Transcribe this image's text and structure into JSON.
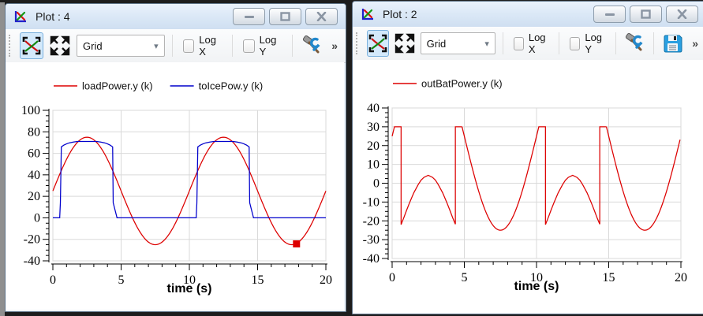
{
  "desktop": {
    "background": "#1d1d1d",
    "left_strip_color": "#8f8f8f"
  },
  "windows": [
    {
      "title": "Plot : 4",
      "titlebar_buttons": {
        "minimize": "minimize",
        "maximize": "maximize",
        "close": "close"
      },
      "toolbar": {
        "fit_button": "auto-scale",
        "pan_button": "pan",
        "grid_value": "Grid",
        "logx_label": "Log X",
        "logx_checked": false,
        "logy_label": "Log Y",
        "logy_checked": false,
        "setup_button": "setup",
        "overflow_label": "»"
      },
      "chart_index": 0
    },
    {
      "title": "Plot : 2",
      "titlebar_buttons": {
        "minimize": "minimize",
        "maximize": "maximize",
        "close": "close"
      },
      "toolbar": {
        "fit_button": "auto-scale",
        "pan_button": "pan",
        "grid_value": "Grid",
        "logx_label": "Log X",
        "logx_checked": false,
        "logy_label": "Log Y",
        "logy_checked": false,
        "setup_button": "setup",
        "save_button": "save",
        "overflow_label": "»"
      },
      "chart_index": 1
    }
  ],
  "chart_data": [
    {
      "type": "line",
      "xlabel": "time (s)",
      "xlim": [
        0,
        20
      ],
      "ylim": [
        -40,
        100
      ],
      "x_ticks": [
        0,
        5,
        10,
        15,
        20
      ],
      "y_ticks": [
        100,
        80,
        60,
        40,
        20,
        0,
        -20,
        -40
      ],
      "x_minor_step": 1,
      "y_minor_step": 5,
      "grid": true,
      "grid_color": "#d9d9d9",
      "legend_position": "top",
      "series": [
        {
          "name": "loadPower.y (k)",
          "color": "#dd0000",
          "segments": [
            {
              "kind": "sine",
              "t0": 0,
              "t1": 20,
              "offset": 25,
              "amp": 50,
              "period": 10,
              "phase": 0,
              "step": 0.1
            }
          ]
        },
        {
          "name": "toIcePow.y (k)",
          "color": "#0000cc",
          "segments": [
            {
              "kind": "points",
              "pts": [
                [
                  0,
                  0
                ],
                [
                  0.5,
                  0
                ],
                [
                  0.55,
                  14
                ],
                [
                  0.62,
                  66
                ],
                [
                  0.8,
                  67.6
                ],
                [
                  1.0,
                  68.8
                ],
                [
                  1.2,
                  69.7
                ],
                [
                  1.5,
                  70.5
                ],
                [
                  1.8,
                  71
                ],
                [
                  3.2,
                  71
                ],
                [
                  3.5,
                  70.5
                ],
                [
                  3.8,
                  69.7
                ],
                [
                  4.0,
                  68.8
                ],
                [
                  4.2,
                  67.6
                ],
                [
                  4.38,
                  66
                ],
                [
                  4.42,
                  14
                ],
                [
                  4.7,
                  0
                ],
                [
                  10.5,
                  0
                ],
                [
                  10.55,
                  14
                ],
                [
                  10.62,
                  66
                ],
                [
                  10.8,
                  67.6
                ],
                [
                  11.0,
                  68.8
                ],
                [
                  11.2,
                  69.7
                ],
                [
                  11.5,
                  70.5
                ],
                [
                  11.8,
                  71
                ],
                [
                  13.2,
                  71
                ],
                [
                  13.5,
                  70.5
                ],
                [
                  13.8,
                  69.7
                ],
                [
                  14.0,
                  68.8
                ],
                [
                  14.2,
                  67.6
                ],
                [
                  14.38,
                  66
                ],
                [
                  14.42,
                  14
                ],
                [
                  14.7,
                  0
                ],
                [
                  20,
                  0
                ]
              ]
            }
          ]
        }
      ],
      "marker": {
        "t": 17.85,
        "y": -24.2,
        "color": "#dd0000",
        "size": 9
      }
    },
    {
      "type": "line",
      "xlabel": "time (s)",
      "xlim": [
        0,
        20
      ],
      "ylim": [
        -40,
        40
      ],
      "x_ticks": [
        0,
        5,
        10,
        15,
        20
      ],
      "y_ticks": [
        40,
        30,
        20,
        10,
        0,
        -10,
        -20,
        -30,
        -40
      ],
      "x_minor_step": 1,
      "y_minor_step": 2.5,
      "grid": true,
      "grid_color": "#d9d9d9",
      "legend_position": "top",
      "series": [
        {
          "name": "outBatPower.y (k)",
          "color": "#dd0000",
          "segments": [
            {
              "kind": "points",
              "pts": [
                [
                  0,
                  25
                ],
                [
                  0.16,
                  30
                ],
                [
                  0.62,
                  30
                ],
                [
                  0.62,
                  -22
                ],
                [
                  0.8,
                  -18.5
                ],
                [
                  1.0,
                  -14.4
                ],
                [
                  1.2,
                  -10.5
                ],
                [
                  1.5,
                  -5.1
                ],
                [
                  1.8,
                  -0.8
                ],
                [
                  2.0,
                  1.6
                ],
                [
                  2.2,
                  3.1
                ],
                [
                  2.5,
                  4.2
                ],
                [
                  2.8,
                  3.1
                ],
                [
                  3.0,
                  1.6
                ],
                [
                  3.2,
                  -0.8
                ],
                [
                  3.5,
                  -5.1
                ],
                [
                  3.8,
                  -10.5
                ],
                [
                  4.0,
                  -14.4
                ],
                [
                  4.2,
                  -18.5
                ],
                [
                  4.38,
                  -21.8
                ],
                [
                  4.38,
                  30
                ],
                [
                  4.84,
                  30
                ]
              ]
            },
            {
              "kind": "sine",
              "t0": 4.84,
              "t1": 10.16,
              "offset": 25,
              "amp": 50,
              "period": 10,
              "phase": 0,
              "step": 0.1
            },
            {
              "kind": "points",
              "pts": [
                [
                  10.16,
                  30
                ],
                [
                  10.62,
                  30
                ],
                [
                  10.62,
                  -22
                ],
                [
                  10.8,
                  -18.5
                ],
                [
                  11.0,
                  -14.4
                ],
                [
                  11.2,
                  -10.5
                ],
                [
                  11.5,
                  -5.1
                ],
                [
                  11.8,
                  -0.8
                ],
                [
                  12.0,
                  1.6
                ],
                [
                  12.2,
                  3.1
                ],
                [
                  12.5,
                  4.2
                ],
                [
                  12.8,
                  3.1
                ],
                [
                  13.0,
                  1.6
                ],
                [
                  13.2,
                  -0.8
                ],
                [
                  13.5,
                  -5.1
                ],
                [
                  13.8,
                  -10.5
                ],
                [
                  14.0,
                  -14.4
                ],
                [
                  14.2,
                  -18.5
                ],
                [
                  14.38,
                  -21.8
                ],
                [
                  14.38,
                  30
                ],
                [
                  14.84,
                  30
                ]
              ]
            },
            {
              "kind": "sine",
              "t0": 14.84,
              "t1": 20,
              "offset": 25,
              "amp": 50,
              "period": 10,
              "phase": 0,
              "step": 0.1
            }
          ]
        }
      ],
      "marker": null
    }
  ]
}
